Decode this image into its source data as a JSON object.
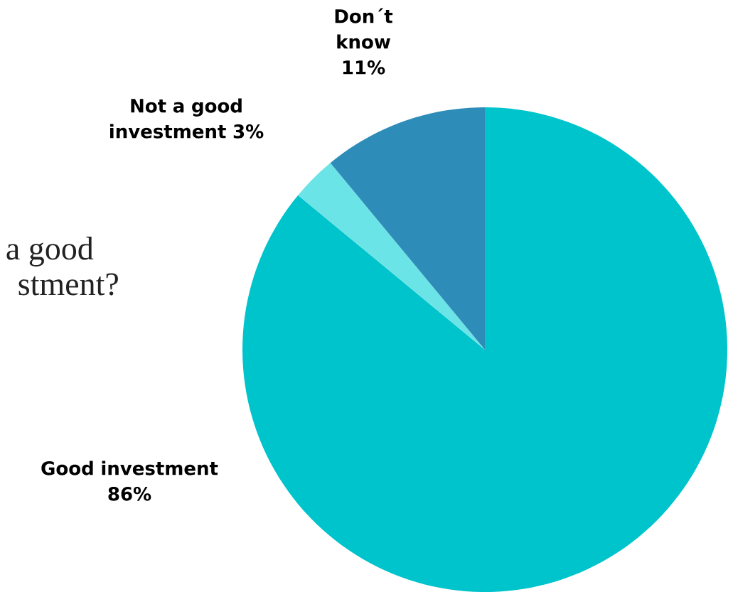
{
  "chart_data": {
    "type": "pie",
    "categories": [
      "Good investment",
      "Not a good investment",
      "Don´t know"
    ],
    "values": [
      86,
      3,
      11
    ],
    "colors": [
      "#00c4cc",
      "#6ae4e6",
      "#2d8db8"
    ],
    "value_labels": [
      "86%",
      "3%",
      "11%"
    ],
    "annotations": [
      "a good",
      "stment?"
    ]
  }
}
